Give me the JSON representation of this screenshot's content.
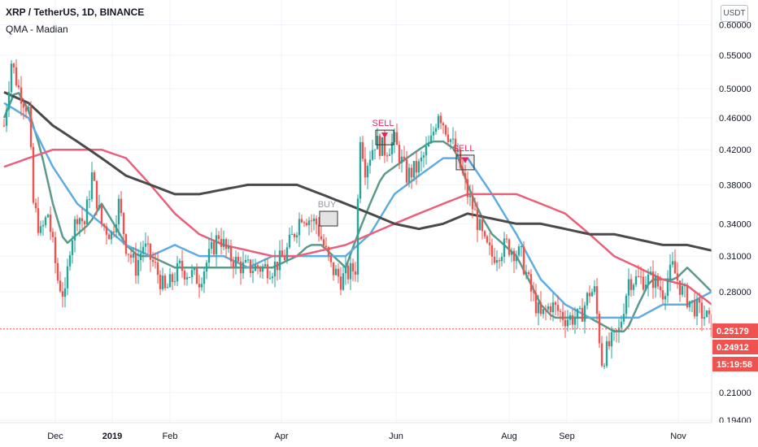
{
  "header": {
    "symbol": "XRP / TetherUS, 1D, BINANCE",
    "indicator": "QMA - Madian"
  },
  "currency_button": "USDT",
  "chart_data": {
    "type": "candlestick",
    "title": "XRP / TetherUS, 1D, BINANCE",
    "y_scale": "log",
    "ylim": [
      0.19,
      0.6
    ],
    "y_ticks": [
      "0.60000",
      "0.55000",
      "0.50000",
      "0.46000",
      "0.42000",
      "0.38000",
      "0.34000",
      "0.31000",
      "0.28000",
      "0.21000",
      "0.19400"
    ],
    "x_ticks": [
      "Dec",
      "2019",
      "Feb",
      "Apr",
      "Jun",
      "Aug",
      "Sep",
      "Nov"
    ],
    "price_tags": [
      {
        "label": "0.25179",
        "color": "#ef5350"
      },
      {
        "label": "0.24912",
        "color": "#ef5350"
      },
      {
        "label": "15:19:58",
        "color": "#ef5350"
      }
    ],
    "signals": [
      {
        "label": "BUY",
        "date": "2019-05-10",
        "price": 0.345,
        "color": "#9598a1"
      },
      {
        "label": "SELL",
        "date": "2019-06-02",
        "price": 0.435,
        "color": "#e91e63"
      },
      {
        "label": "SELL",
        "date": "2019-07-05",
        "price": 0.405,
        "color": "#e91e63"
      }
    ],
    "series": [
      {
        "name": "price",
        "color_up": "#26a69a",
        "color_down": "#ef5350",
        "path": [
          [
            0,
            0.45
          ],
          [
            3,
            0.54
          ],
          [
            6,
            0.5
          ],
          [
            10,
            0.47
          ],
          [
            12,
            0.36
          ],
          [
            15,
            0.33
          ],
          [
            18,
            0.35
          ],
          [
            22,
            0.29
          ],
          [
            25,
            0.275
          ],
          [
            27,
            0.32
          ],
          [
            30,
            0.35
          ],
          [
            33,
            0.34
          ],
          [
            36,
            0.39
          ],
          [
            40,
            0.34
          ],
          [
            44,
            0.33
          ],
          [
            47,
            0.36
          ],
          [
            50,
            0.32
          ],
          [
            54,
            0.3
          ],
          [
            57,
            0.32
          ],
          [
            62,
            0.3
          ],
          [
            66,
            0.28
          ],
          [
            72,
            0.3
          ],
          [
            80,
            0.29
          ],
          [
            88,
            0.33
          ],
          [
            92,
            0.31
          ],
          [
            98,
            0.3
          ],
          [
            104,
            0.3
          ],
          [
            110,
            0.3
          ],
          [
            115,
            0.31
          ],
          [
            122,
            0.35
          ],
          [
            128,
            0.34
          ],
          [
            134,
            0.3
          ],
          [
            138,
            0.29
          ],
          [
            144,
            0.3
          ],
          [
            146,
            0.44
          ],
          [
            148,
            0.4
          ],
          [
            152,
            0.43
          ],
          [
            156,
            0.42
          ],
          [
            160,
            0.43
          ],
          [
            165,
            0.39
          ],
          [
            170,
            0.4
          ],
          [
            175,
            0.43
          ],
          [
            178,
            0.47
          ],
          [
            182,
            0.44
          ],
          [
            186,
            0.41
          ],
          [
            190,
            0.37
          ],
          [
            193,
            0.35
          ],
          [
            197,
            0.32
          ],
          [
            200,
            0.31
          ],
          [
            206,
            0.32
          ],
          [
            212,
            0.31
          ],
          [
            216,
            0.28
          ],
          [
            220,
            0.26
          ],
          [
            224,
            0.27
          ],
          [
            230,
            0.26
          ],
          [
            236,
            0.26
          ],
          [
            240,
            0.28
          ],
          [
            242,
            0.28
          ],
          [
            245,
            0.23
          ],
          [
            248,
            0.24
          ],
          [
            252,
            0.25
          ],
          [
            256,
            0.29
          ],
          [
            262,
            0.29
          ],
          [
            266,
            0.29
          ],
          [
            270,
            0.28
          ],
          [
            274,
            0.3
          ],
          [
            278,
            0.28
          ],
          [
            282,
            0.27
          ],
          [
            288,
            0.26
          ],
          [
            290,
            0.252
          ]
        ]
      },
      {
        "name": "",
        "color": "#5b9a8b",
        "path": [
          [
            0,
            0.46
          ],
          [
            5,
            0.5
          ],
          [
            10,
            0.47
          ],
          [
            15,
            0.42
          ],
          [
            20,
            0.36
          ],
          [
            25,
            0.32
          ],
          [
            30,
            0.33
          ],
          [
            35,
            0.34
          ],
          [
            40,
            0.36
          ],
          [
            45,
            0.34
          ],
          [
            50,
            0.32
          ],
          [
            55,
            0.31
          ],
          [
            60,
            0.31
          ],
          [
            70,
            0.3
          ],
          [
            80,
            0.3
          ],
          [
            90,
            0.3
          ],
          [
            100,
            0.3
          ],
          [
            110,
            0.3
          ],
          [
            120,
            0.31
          ],
          [
            125,
            0.32
          ],
          [
            130,
            0.32
          ],
          [
            135,
            0.31
          ],
          [
            140,
            0.3
          ],
          [
            145,
            0.33
          ],
          [
            150,
            0.36
          ],
          [
            155,
            0.39
          ],
          [
            160,
            0.4
          ],
          [
            170,
            0.42
          ],
          [
            175,
            0.43
          ],
          [
            180,
            0.43
          ],
          [
            185,
            0.42
          ],
          [
            190,
            0.38
          ],
          [
            195,
            0.35
          ],
          [
            200,
            0.33
          ],
          [
            205,
            0.32
          ],
          [
            210,
            0.31
          ],
          [
            215,
            0.29
          ],
          [
            220,
            0.27
          ],
          [
            225,
            0.26
          ],
          [
            230,
            0.26
          ],
          [
            235,
            0.26
          ],
          [
            240,
            0.26
          ],
          [
            245,
            0.255
          ],
          [
            250,
            0.25
          ],
          [
            255,
            0.25
          ],
          [
            260,
            0.27
          ],
          [
            265,
            0.29
          ],
          [
            270,
            0.29
          ],
          [
            275,
            0.29
          ],
          [
            280,
            0.3
          ],
          [
            285,
            0.29
          ],
          [
            290,
            0.28
          ]
        ]
      },
      {
        "name": "",
        "color": "#5dade2",
        "path": [
          [
            0,
            0.48
          ],
          [
            10,
            0.46
          ],
          [
            20,
            0.4
          ],
          [
            30,
            0.36
          ],
          [
            40,
            0.34
          ],
          [
            50,
            0.32
          ],
          [
            60,
            0.31
          ],
          [
            70,
            0.32
          ],
          [
            80,
            0.31
          ],
          [
            90,
            0.31
          ],
          [
            100,
            0.3
          ],
          [
            110,
            0.31
          ],
          [
            120,
            0.31
          ],
          [
            130,
            0.31
          ],
          [
            140,
            0.31
          ],
          [
            145,
            0.32
          ],
          [
            150,
            0.33
          ],
          [
            160,
            0.37
          ],
          [
            170,
            0.39
          ],
          [
            180,
            0.41
          ],
          [
            190,
            0.41
          ],
          [
            200,
            0.37
          ],
          [
            210,
            0.33
          ],
          [
            220,
            0.29
          ],
          [
            230,
            0.27
          ],
          [
            240,
            0.26
          ],
          [
            250,
            0.26
          ],
          [
            260,
            0.26
          ],
          [
            270,
            0.27
          ],
          [
            280,
            0.27
          ],
          [
            290,
            0.28
          ]
        ]
      },
      {
        "name": "",
        "color": "#ec5f7a",
        "path": [
          [
            0,
            0.4
          ],
          [
            10,
            0.41
          ],
          [
            20,
            0.42
          ],
          [
            30,
            0.42
          ],
          [
            40,
            0.42
          ],
          [
            50,
            0.41
          ],
          [
            60,
            0.38
          ],
          [
            70,
            0.35
          ],
          [
            80,
            0.33
          ],
          [
            90,
            0.32
          ],
          [
            100,
            0.315
          ],
          [
            110,
            0.31
          ],
          [
            120,
            0.31
          ],
          [
            130,
            0.315
          ],
          [
            140,
            0.32
          ],
          [
            150,
            0.33
          ],
          [
            160,
            0.34
          ],
          [
            170,
            0.35
          ],
          [
            180,
            0.36
          ],
          [
            190,
            0.37
          ],
          [
            200,
            0.37
          ],
          [
            210,
            0.37
          ],
          [
            220,
            0.36
          ],
          [
            230,
            0.35
          ],
          [
            240,
            0.33
          ],
          [
            250,
            0.31
          ],
          [
            260,
            0.3
          ],
          [
            270,
            0.29
          ],
          [
            280,
            0.285
          ],
          [
            290,
            0.27
          ]
        ]
      },
      {
        "name": "",
        "color": "#4a4a4a",
        "path": [
          [
            0,
            0.495
          ],
          [
            10,
            0.48
          ],
          [
            20,
            0.45
          ],
          [
            30,
            0.43
          ],
          [
            40,
            0.41
          ],
          [
            50,
            0.39
          ],
          [
            60,
            0.38
          ],
          [
            70,
            0.37
          ],
          [
            80,
            0.37
          ],
          [
            90,
            0.375
          ],
          [
            100,
            0.38
          ],
          [
            110,
            0.38
          ],
          [
            120,
            0.38
          ],
          [
            130,
            0.37
          ],
          [
            140,
            0.36
          ],
          [
            150,
            0.35
          ],
          [
            160,
            0.34
          ],
          [
            170,
            0.335
          ],
          [
            180,
            0.34
          ],
          [
            190,
            0.35
          ],
          [
            200,
            0.345
          ],
          [
            210,
            0.34
          ],
          [
            220,
            0.34
          ],
          [
            230,
            0.335
          ],
          [
            240,
            0.33
          ],
          [
            250,
            0.33
          ],
          [
            260,
            0.325
          ],
          [
            270,
            0.32
          ],
          [
            280,
            0.32
          ],
          [
            290,
            0.315
          ]
        ]
      }
    ]
  }
}
